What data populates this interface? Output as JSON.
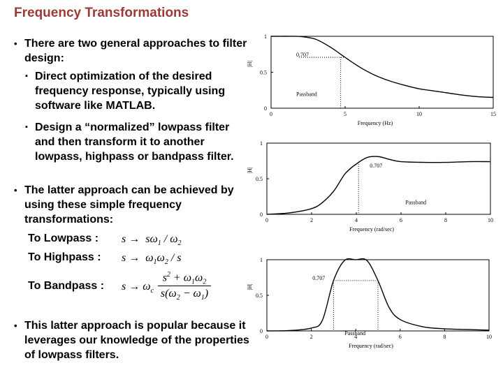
{
  "slide": {
    "title": "Frequency Transformations",
    "bullets": [
      "There are two general approaches to filter design:",
      "Direct optimization of the desired frequency response, typically using software like MATLAB.",
      "Design a “normalized” lowpass filter and then transform it to another lowpass, highpass or bandpass filter.",
      "The latter approach can be achieved by using these simple frequency transformations:",
      "This latter approach is popular because it leverages our knowledge of the properties of lowpass filters."
    ],
    "transforms": {
      "lowpass_label": "To Lowpass :",
      "highpass_label": "To Highpass :",
      "bandpass_label": "To Bandpass :",
      "arrow": "s →"
    }
  },
  "chart_data": [
    {
      "type": "line",
      "xlabel": "Frequency (Hz)",
      "ylabel": "|H|",
      "x_ticks": [
        "0",
        "5",
        "10",
        "15"
      ],
      "y_ticks": [
        "0",
        "0.5",
        "1"
      ],
      "xlim": [
        0,
        15
      ],
      "ylim": [
        0,
        1
      ],
      "annotation": "0.707",
      "region_label": "Passband",
      "x": [
        0,
        1,
        2,
        3,
        4,
        5,
        6,
        7,
        8,
        9,
        10,
        11,
        12,
        13,
        14,
        15
      ],
      "y": [
        1.0,
        1.0,
        0.997,
        0.96,
        0.85,
        0.707,
        0.57,
        0.46,
        0.38,
        0.32,
        0.27,
        0.24,
        0.21,
        0.18,
        0.16,
        0.15
      ]
    },
    {
      "type": "line",
      "xlabel": "Frequency (rad/sec)",
      "ylabel": "|H|",
      "x_ticks": [
        "0",
        "2",
        "4",
        "6",
        "8",
        "10"
      ],
      "y_ticks": [
        "0",
        "0.5",
        "1"
      ],
      "xlim": [
        0,
        10
      ],
      "ylim": [
        0,
        1
      ],
      "annotation": "0.707",
      "region_label": "Passband",
      "x": [
        0,
        1,
        2,
        2.5,
        3,
        3.5,
        4,
        4.5,
        5,
        5.5,
        6,
        7,
        8,
        9,
        10
      ],
      "y": [
        0.0,
        0.02,
        0.08,
        0.17,
        0.33,
        0.57,
        0.707,
        0.8,
        0.81,
        0.77,
        0.74,
        0.73,
        0.73,
        0.74,
        0.74
      ]
    },
    {
      "type": "line",
      "xlabel": "Frequency (rad/sec)",
      "ylabel": "|H|",
      "x_ticks": [
        "0",
        "2",
        "4",
        "6",
        "8",
        "10"
      ],
      "y_ticks": [
        "0",
        "0.5",
        "1"
      ],
      "xlim": [
        0,
        10
      ],
      "ylim": [
        0,
        1
      ],
      "annotation": "0.707",
      "region_label": "Passband",
      "x": [
        0,
        1,
        2,
        2.5,
        3,
        3.5,
        4,
        4.5,
        5,
        5.5,
        6,
        7,
        8,
        9,
        10
      ],
      "y": [
        0.0,
        0.005,
        0.04,
        0.15,
        0.707,
        0.99,
        1.0,
        0.99,
        0.707,
        0.33,
        0.16,
        0.06,
        0.03,
        0.02,
        0.01
      ]
    }
  ]
}
